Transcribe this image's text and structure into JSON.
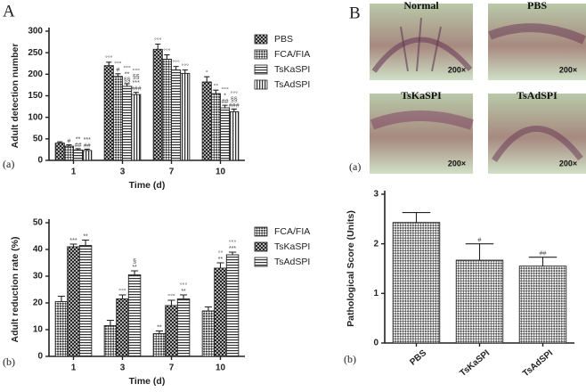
{
  "panels": {
    "a_main": "A",
    "a_top": "(a)",
    "a_bottom": "(b)",
    "b_main": "B",
    "b_top": "(a)",
    "b_bottom": "(b)"
  },
  "micrographs": [
    {
      "label": "Normal",
      "magnification": "200×"
    },
    {
      "label": "PBS",
      "magnification": "200×"
    },
    {
      "label": "TsKaSPI",
      "magnification": "200×"
    },
    {
      "label": "TsAdSPI",
      "magnification": "200×"
    }
  ],
  "chart_data": [
    {
      "type": "bar",
      "ylabel": "Adult detection number",
      "xlabel": "Time (d)",
      "categories": [
        "1",
        "3",
        "7",
        "10"
      ],
      "ylim": [
        0,
        300
      ],
      "yticks": [
        0,
        50,
        100,
        150,
        200,
        250,
        300
      ],
      "legend": "right",
      "series": [
        {
          "name": "PBS",
          "pattern": "crosshatch",
          "values": [
            40,
            220,
            258,
            182
          ],
          "errors": [
            3,
            8,
            12,
            12
          ],
          "annotations": [
            null,
            [
              "°°°"
            ],
            [
              "°°°"
            ],
            [
              "°"
            ]
          ]
        },
        {
          "name": "FCA/FIA",
          "pattern": "checker",
          "values": [
            33,
            195,
            235,
            155
          ],
          "errors": [
            3,
            6,
            10,
            8
          ],
          "annotations": [
            [
              "#"
            ],
            [
              "°°°",
              "#"
            ],
            [
              "°°°"
            ],
            [
              "°°"
            ]
          ]
        },
        {
          "name": "TsKaSPI",
          "pattern": "hlines",
          "values": [
            24,
            172,
            210,
            122
          ],
          "errors": [
            3,
            6,
            8,
            6
          ],
          "annotations": [
            [
              "**",
              "##"
            ],
            [
              "°°°",
              "**",
              "§§"
            ],
            [
              "°°°"
            ],
            [
              "°°°",
              "*",
              "##"
            ]
          ]
        },
        {
          "name": "TsAdSPI",
          "pattern": "vlines",
          "values": [
            23,
            153,
            202,
            113
          ],
          "errors": [
            3,
            5,
            8,
            6
          ],
          "annotations": [
            [
              "***",
              "##"
            ],
            [
              "°°°",
              "§§",
              "***",
              "###"
            ],
            [
              "°°°"
            ],
            [
              "°°°",
              "§§",
              "###"
            ]
          ]
        }
      ]
    },
    {
      "type": "bar",
      "ylabel": "Adult reduction rate (%)",
      "xlabel": "Time (d)",
      "categories": [
        "1",
        "3",
        "7",
        "10"
      ],
      "ylim": [
        0,
        50
      ],
      "yticks": [
        0,
        10,
        20,
        30,
        40,
        50
      ],
      "legend": "right",
      "series": [
        {
          "name": "FCA/FIA",
          "pattern": "checker",
          "values": [
            20.5,
            11.5,
            8.5,
            17
          ],
          "errors": [
            2,
            2,
            1,
            1.5
          ],
          "annotations": [
            null,
            null,
            [
              "**"
            ],
            null
          ]
        },
        {
          "name": "TsKaSPI",
          "pattern": "crosshatch",
          "values": [
            41,
            21.5,
            19,
            33
          ],
          "errors": [
            1,
            1.5,
            2,
            2
          ],
          "annotations": [
            [
              "***"
            ],
            [
              "°°°"
            ],
            [
              "°°°"
            ],
            [
              "°°",
              "**"
            ]
          ]
        },
        {
          "name": "TsAdSPI",
          "pattern": "hlines",
          "values": [
            41.5,
            30.5,
            21.5,
            38
          ],
          "errors": [
            2,
            1.5,
            1.5,
            1
          ],
          "annotations": [
            [
              "**"
            ],
            [
              "§",
              "**"
            ],
            [
              "°°°",
              "**"
            ],
            [
              "°°°",
              "***"
            ]
          ]
        }
      ]
    },
    {
      "type": "bar",
      "ylabel": "Pathological Score (Units)",
      "categories": [
        "PBS",
        "TsKaSPI",
        "TsAdSPI"
      ],
      "ylim": [
        0,
        3
      ],
      "yticks": [
        0,
        1,
        2,
        3
      ],
      "pattern": "dots",
      "values": [
        2.43,
        1.67,
        1.55
      ],
      "errors": [
        0.2,
        0.33,
        0.18
      ],
      "annotations": [
        null,
        [
          "#"
        ],
        [
          "##"
        ]
      ]
    }
  ]
}
